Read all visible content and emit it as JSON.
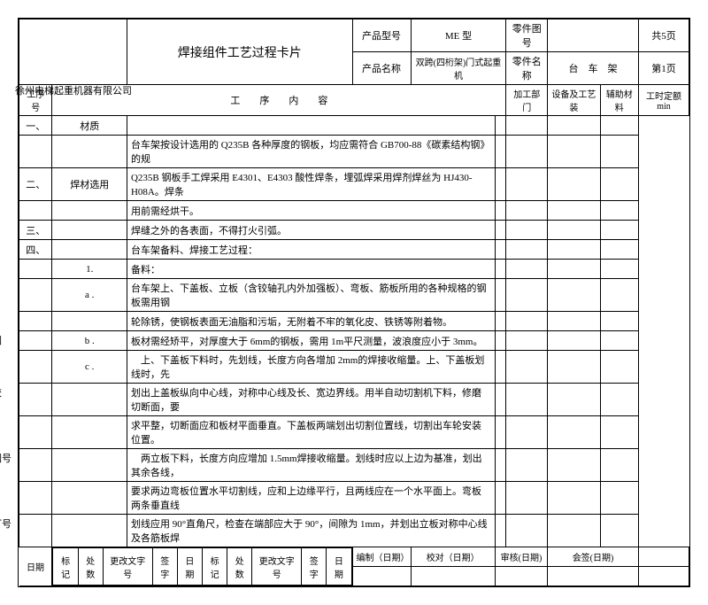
{
  "header": {
    "title": "焊接组件工艺过程卡片",
    "product_model_label": "产品型号",
    "product_model": "ME 型",
    "part_no_label": "零件图号",
    "part_no": "",
    "total_pages": "共5页",
    "product_name_label": "产品名称",
    "product_name": "双跨(四桁架)门式起重机",
    "part_name_label": "零件名称",
    "part_name": "台　车　架",
    "page_no": "第1页",
    "company": "徐州电梯起重机器有限公司"
  },
  "cols": {
    "seq": "工序号",
    "content": "工　　序　　内　　容",
    "dept": "加工部门",
    "equip": "设备及工艺装",
    "aux": "辅助材料",
    "time": "工时定额min"
  },
  "rows": [
    {
      "no": "一、",
      "c1": "材质",
      "text": ""
    },
    {
      "no": "",
      "c1": "",
      "text": "台车架按设计选用的 Q235B 各种厚度的钢板，均应需符合 GB700-88《碳素结构钢》的规"
    },
    {
      "no": "二、",
      "c1": "焊材选用",
      "text": "Q235B 钢板手工焊采用 E4301、E4303 酸性焊条，埋弧焊采用焊剂焊丝为 HJ430-H08A。焊条"
    },
    {
      "no": "",
      "c1": "",
      "text": "用前需经烘干。"
    },
    {
      "no": "三、",
      "c1": "",
      "text": "焊缝之外的各表面，不得打火引弧。"
    },
    {
      "no": "四、",
      "c1": "",
      "text": "台车架备料、焊接工艺过程："
    },
    {
      "no": "",
      "c1": "1.",
      "text": "备料："
    },
    {
      "no": "",
      "c1": "a .",
      "text": "台车架上、下盖板、立板（含铰轴孔内外加强板）、弯板、筋板所用的各种规格的钢板需用钢"
    },
    {
      "no": "",
      "c1": "",
      "text": "轮除锈，使钢板表面无油脂和污垢，无附着不牢的氧化皮、铁锈等附着物。"
    },
    {
      "no": "",
      "c1": "b .",
      "text": "板材需经矫平，对厚度大于 6mm的钢板，需用 1m平尺测量，波浪度应小于 3mm。",
      "side": "描图"
    },
    {
      "no": "",
      "c1": "c .",
      "text": "　上、下盖板下料时，先划线，长度方向各增加 2mm的焊接收缩量。上、下盖板划线时，先"
    },
    {
      "no": "",
      "c1": "",
      "text": "划出上盖板纵向中心线，对称中心线及长、宽边界线。用半自动切割机下料，修磨切断面，要",
      "side": "描校"
    },
    {
      "no": "",
      "c1": "",
      "text": "求平整，切断面应和板材平面垂直。下盖板两端划出切割位置线，切割出车轮安装位置。"
    },
    {
      "no": "",
      "c1": "",
      "text": "　两立板下料，长度方向应增加 1.5mm焊接收缩量。划线时应以上边为基准，划出其余各线，",
      "side": "底图号"
    },
    {
      "no": "",
      "c1": "",
      "text": "要求两边弯板位置水平切割线，应和上边缘平行，且两线应在一个水平面上。弯板两条垂直线"
    },
    {
      "no": "",
      "c1": "",
      "text": "划线应用 90°直角尺，检查在端部应大于 90°，间隙为 1mm，并划出立板对称中心线及各筋板焊",
      "side": "装订号"
    }
  ],
  "footer": {
    "compile": "编制（日期）",
    "proof": "校对（日期）",
    "review": "审核(日期)",
    "cosign": "会签(日期)",
    "date": "日期",
    "mark": "标记",
    "count": "处数",
    "change": "更改文字号",
    "sign": "签字",
    "date2": "日期"
  }
}
